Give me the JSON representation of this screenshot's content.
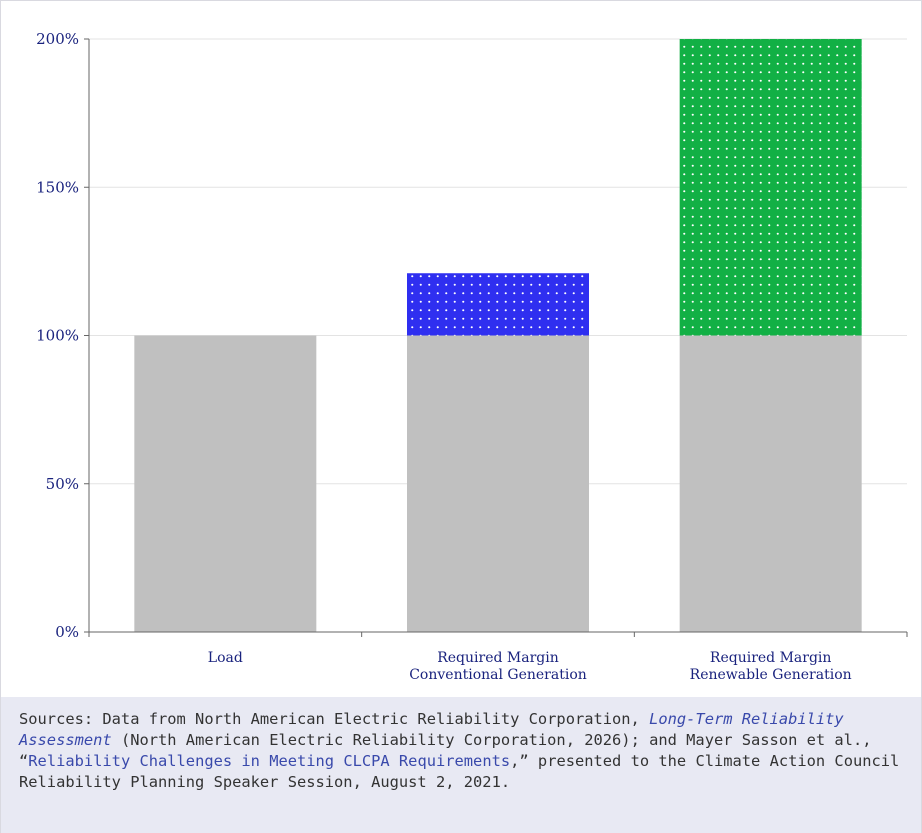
{
  "chart_data": {
    "type": "bar",
    "stacked": true,
    "categories": [
      "Load",
      "Required Margin Conventional Generation",
      "Required Margin Renewable Generation"
    ],
    "category_lines": [
      [
        "Load"
      ],
      [
        "Required Margin",
        "Conventional Generation"
      ],
      [
        "Required Margin",
        "Renewable Generation"
      ]
    ],
    "series": [
      {
        "values": [
          100,
          100,
          100
        ],
        "color": "#c0c0c0",
        "pattern": "solid"
      },
      {
        "values": [
          0,
          21,
          100
        ],
        "colors": [
          "#c0c0c0",
          "#2f2ff0",
          "#12b045"
        ],
        "pattern": "dotted"
      }
    ],
    "yticks": [
      "0%",
      "50%",
      "100%",
      "150%",
      "200%"
    ],
    "ylim": [
      0,
      200
    ],
    "grid": true,
    "legend": "none"
  },
  "source": {
    "prefix": "Sources: Data from North American Electric Reliability Corporation, ",
    "link1": "Long-Term Reliability Assessment",
    "middle": " (North American Electric Reliability Corporation, 2026); and Mayer Sasson et al., “",
    "link2": "Reliability Challenges in Meeting CLCPA Requirements",
    "suffix": ",” presented to the Climate Action Council Reliability Planning Speaker Session, August 2, 2021."
  }
}
